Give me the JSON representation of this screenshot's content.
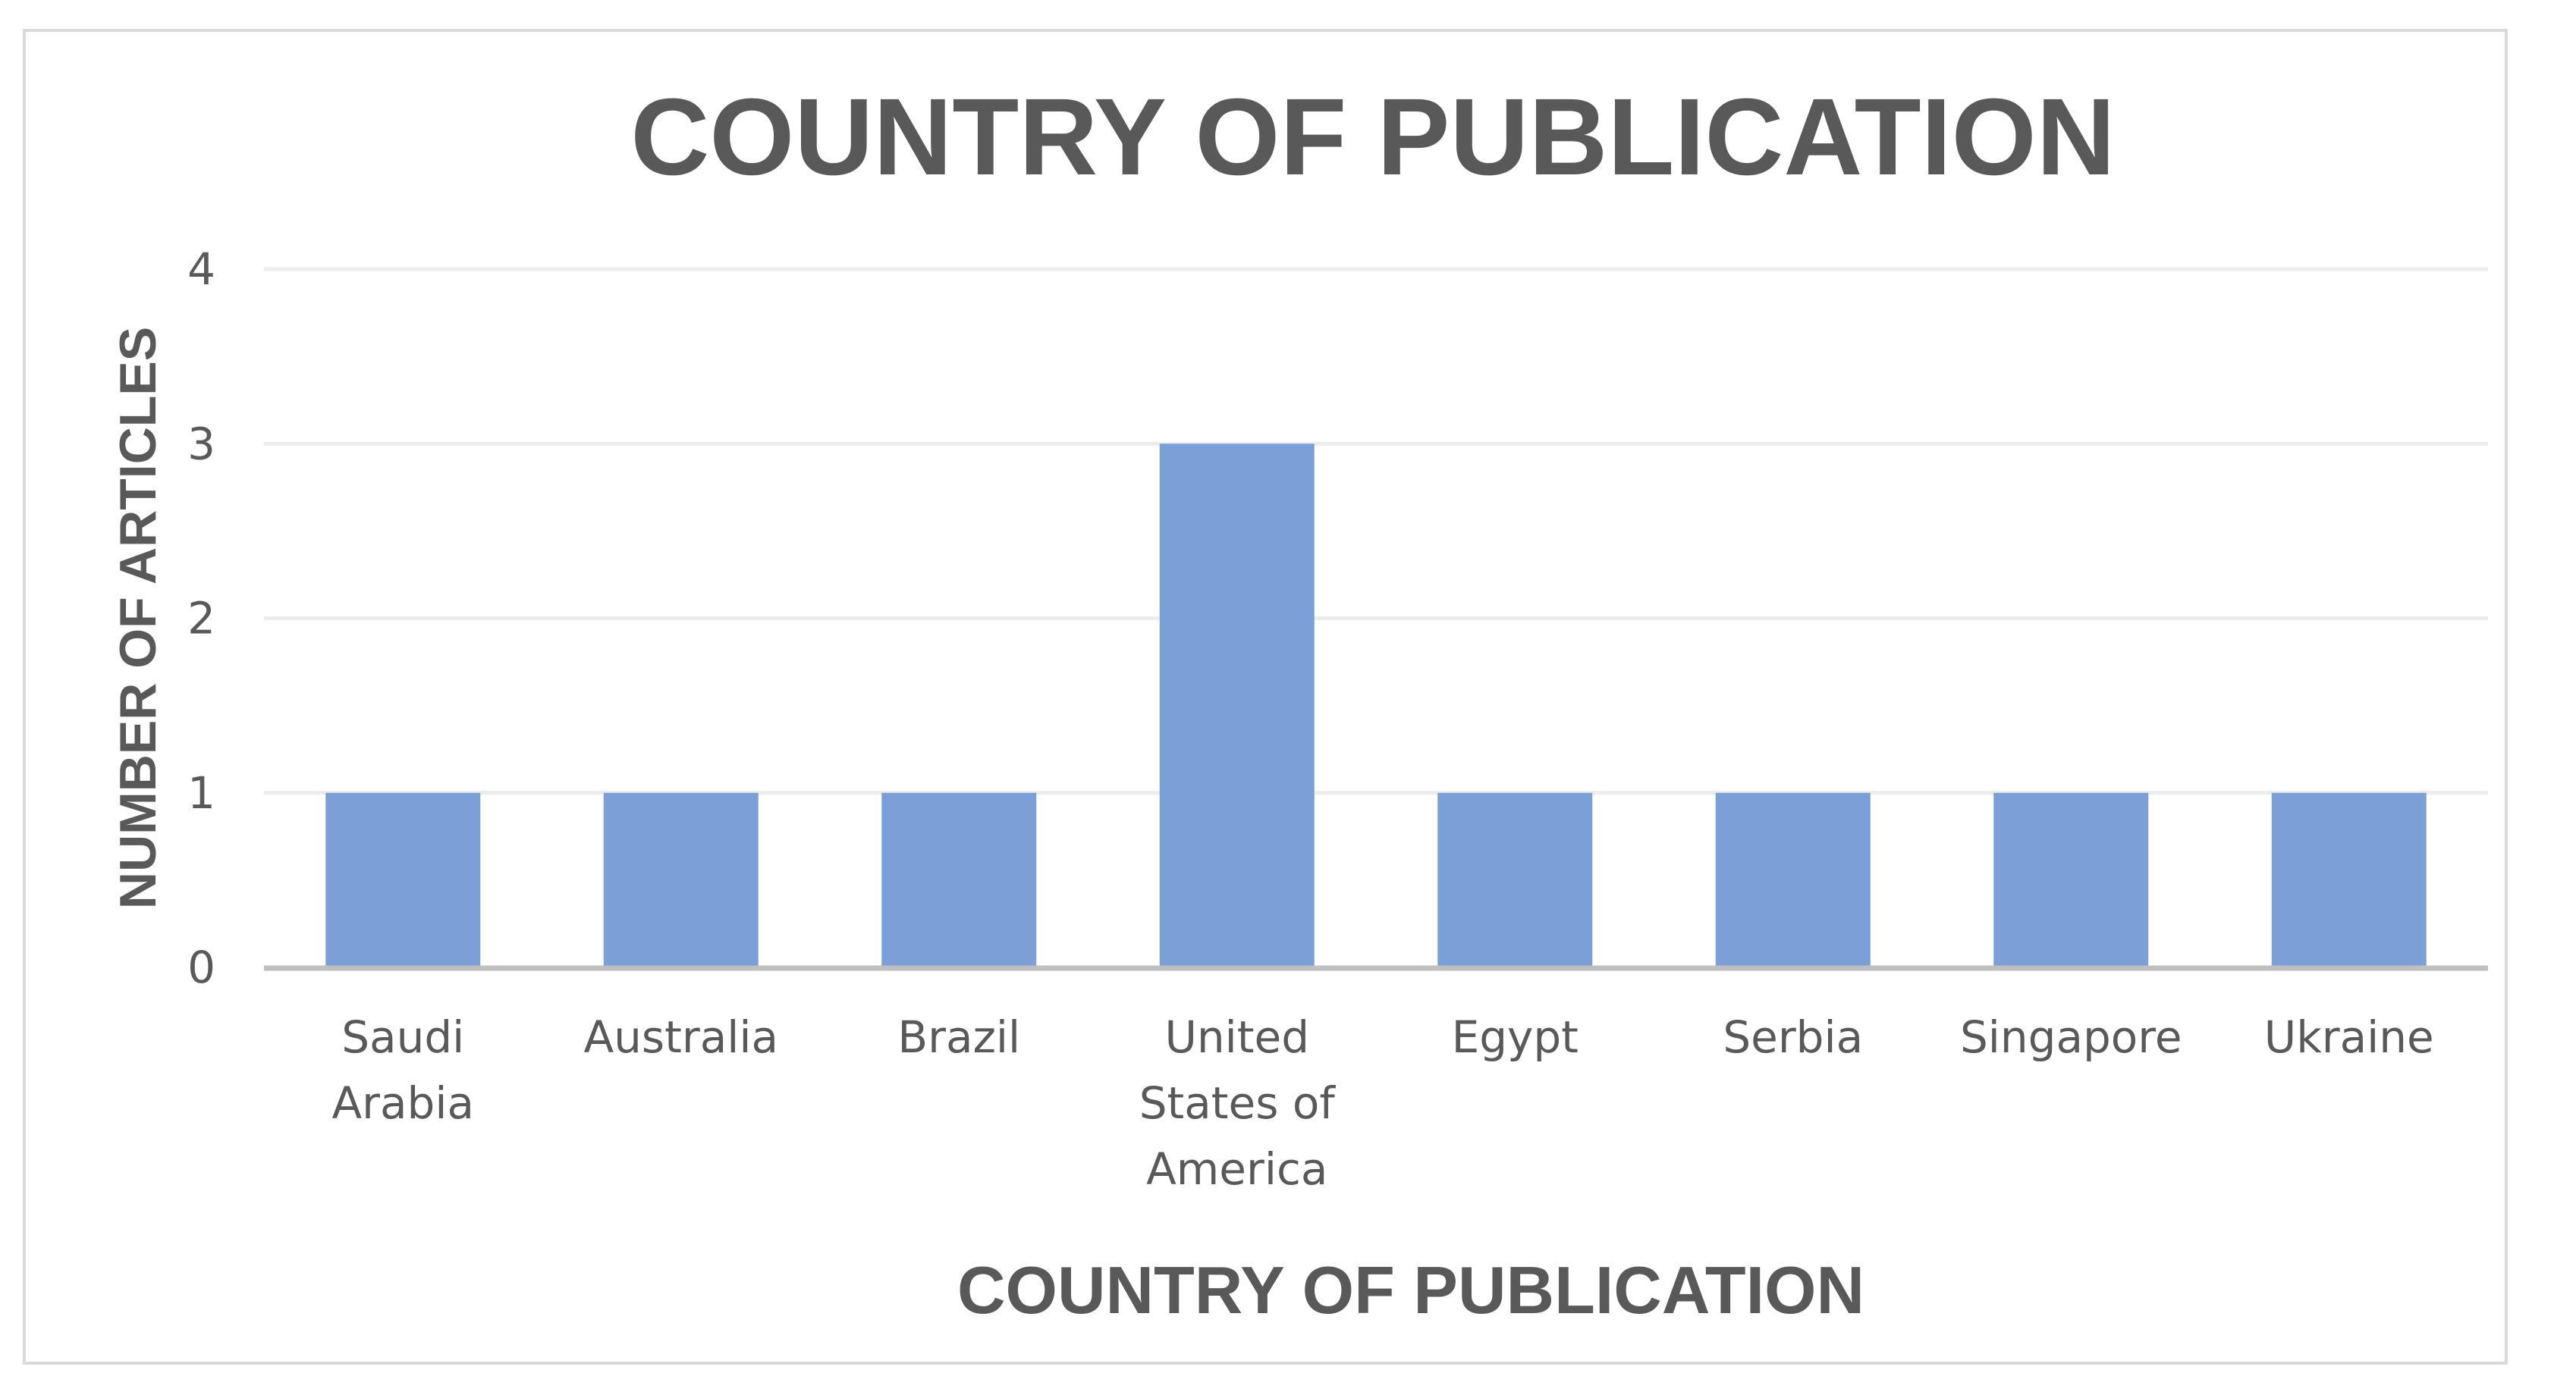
{
  "chart_data": {
    "type": "bar",
    "title": "COUNTRY OF PUBLICATION",
    "xlabel": "COUNTRY OF PUBLICATION",
    "ylabel": "NUMBER OF ARTICLES",
    "categories": [
      [
        "Saudi",
        "Arabia"
      ],
      [
        "Australia"
      ],
      [
        "Brazil"
      ],
      [
        "United",
        "States of",
        "America"
      ],
      [
        "Egypt"
      ],
      [
        "Serbia"
      ],
      [
        "Singapore"
      ],
      [
        "Ukraine"
      ]
    ],
    "values": [
      1,
      1,
      1,
      3,
      1,
      1,
      1,
      1
    ],
    "ylim": [
      0,
      4
    ],
    "yticks": [
      "0",
      "1",
      "2",
      "3",
      "4"
    ],
    "grid": true,
    "legend": "none",
    "bar_color": "#7b9fd6",
    "grid_color": "#ececec",
    "axis_color": "#bfbfbf",
    "text_color": "#595959"
  }
}
